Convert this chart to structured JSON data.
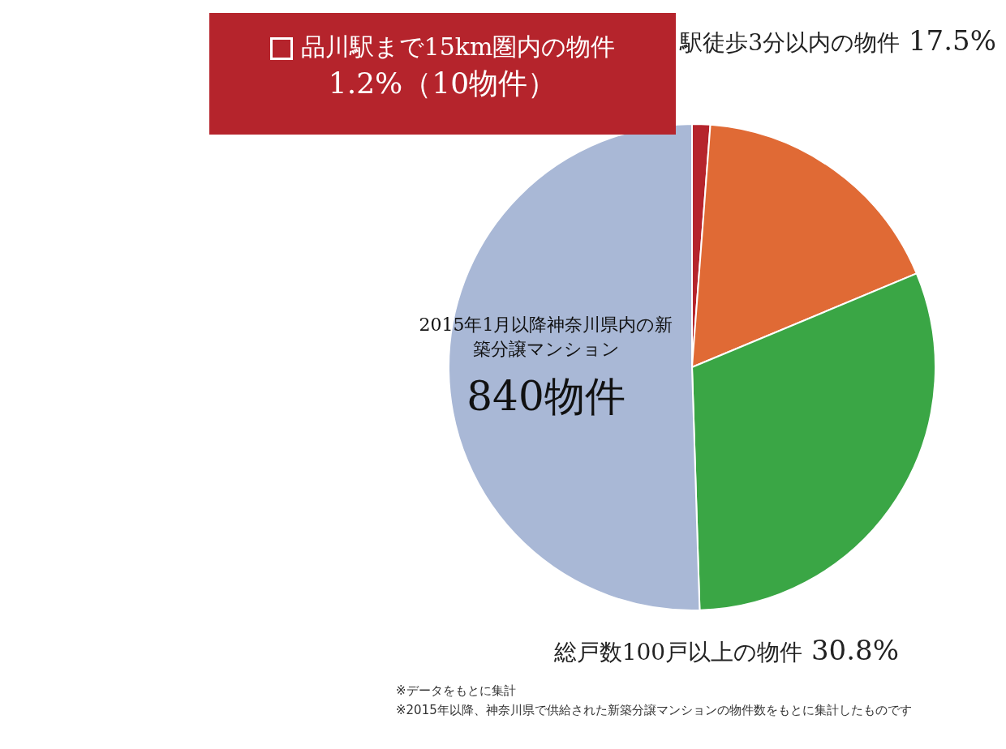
{
  "chart_data": {
    "type": "pie",
    "categories": [
      "品川駅まで15km圏内の物件",
      "駅徒歩3分以内の物件",
      "総戸数100戸以上の物件",
      "2015年1月以降神奈川県内の新築分譲マンション"
    ],
    "values": [
      1.2,
      17.5,
      30.8,
      50.5
    ],
    "value_labels": [
      "1.2%（10物件）",
      "17.5%",
      "30.8%",
      null
    ],
    "colors": [
      "#b5242c",
      "#e06a35",
      "#3aa645",
      "#a9b8d6"
    ],
    "annotations": [
      "840物件",
      "※データをもとに集計",
      "※2015年以降、神奈川県で供給された新築分譲マンションの物件数をもとに集計したものです"
    ]
  }
}
